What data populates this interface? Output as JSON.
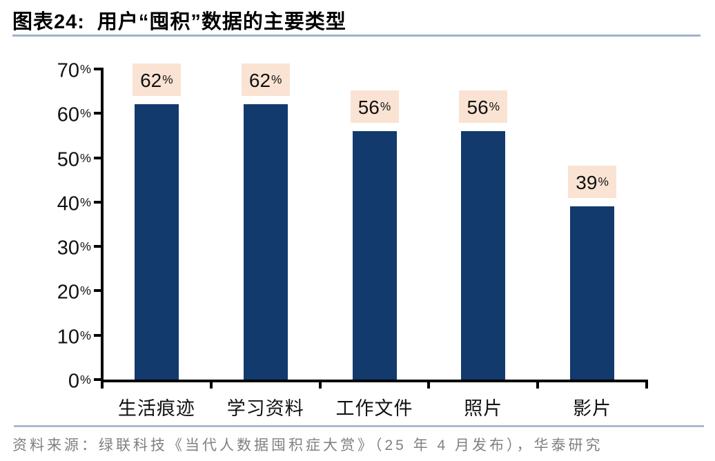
{
  "header": {
    "chart_label": "图表24:",
    "chart_title": "用户“囤积”数据的主要类型"
  },
  "chart_data": {
    "type": "bar",
    "title": "用户“囤积”数据的主要类型",
    "categories": [
      "生活痕迹",
      "学习资料",
      "工作文件",
      "照片",
      "影片"
    ],
    "values": [
      62,
      62,
      56,
      56,
      39
    ],
    "value_labels": [
      "62%",
      "62%",
      "56%",
      "56%",
      "39%"
    ],
    "xlabel": "",
    "ylabel": "",
    "ylim": [
      0,
      70
    ],
    "ytick_step": 10,
    "ytick_labels": [
      "0%",
      "10%",
      "20%",
      "30%",
      "40%",
      "50%",
      "60%",
      "70%"
    ],
    "grid": false,
    "legend_position": "none",
    "bar_color": "#123A6D",
    "value_label_bg": "#FAE3D3"
  },
  "footer": {
    "source": "资料来源：绿联科技《当代人数据囤积症大赏》（25 年 4 月发布），华泰研究"
  },
  "colors": {
    "title_rule": "#9FB2CC",
    "footer_rule": "#ACB9C9",
    "axis": "#000000",
    "text": "#111111",
    "source_text": "#808080"
  }
}
